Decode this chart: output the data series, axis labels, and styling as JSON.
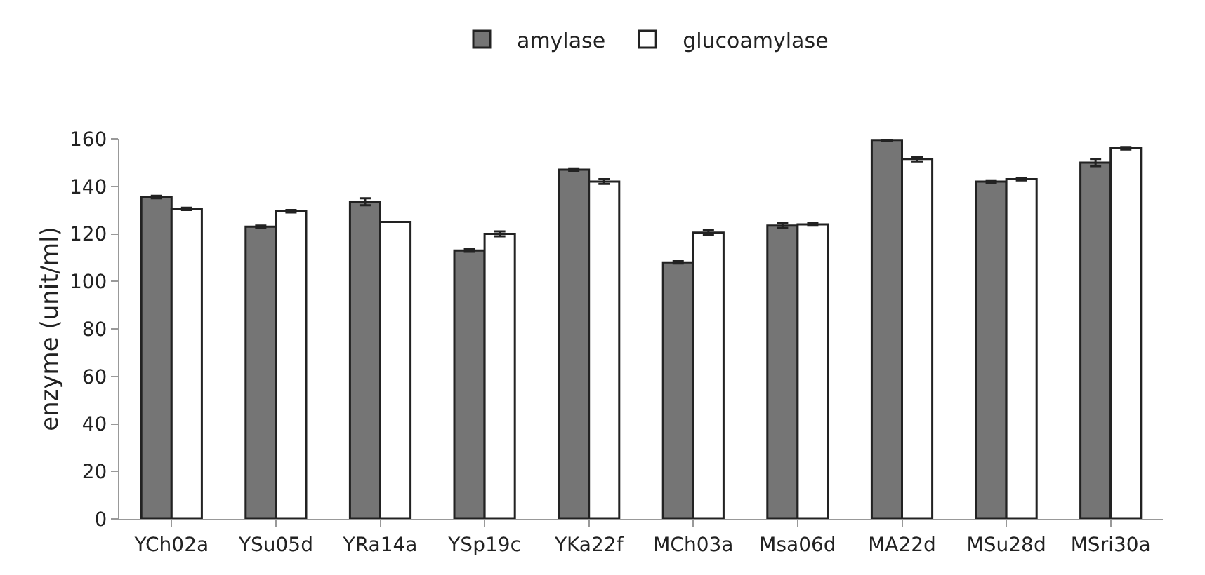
{
  "chart_data": {
    "type": "bar",
    "ylabel": "enzyme (unit/ml)",
    "categories": [
      "YCh02a",
      "YSu05d",
      "YRa14a",
      "YSp19c",
      "YKa22f",
      "MCh03a",
      "Msa06d",
      "MA22d",
      "MSu28d",
      "MSri30a"
    ],
    "series": [
      {
        "name": "amylase",
        "color": "#757575",
        "values": [
          135.5,
          123,
          133.5,
          113,
          147,
          108,
          123.5,
          159.5,
          142,
          150
        ],
        "errors": [
          0.5,
          0.5,
          1.5,
          0.5,
          0.5,
          0.5,
          1,
          0.5,
          0.5,
          1.5
        ]
      },
      {
        "name": "glucoamylase",
        "color": "#ffffff",
        "values": [
          130.5,
          129.5,
          125,
          120,
          142,
          120.5,
          124,
          151.5,
          143,
          156
        ],
        "errors": [
          0.5,
          0.5,
          0,
          1,
          1,
          1,
          0.5,
          1,
          0.5,
          0.5
        ]
      }
    ],
    "ylim": [
      0,
      160
    ],
    "yticks": [
      0,
      20,
      40,
      60,
      80,
      100,
      120,
      140,
      160
    ],
    "grid": false,
    "legend": "top"
  }
}
